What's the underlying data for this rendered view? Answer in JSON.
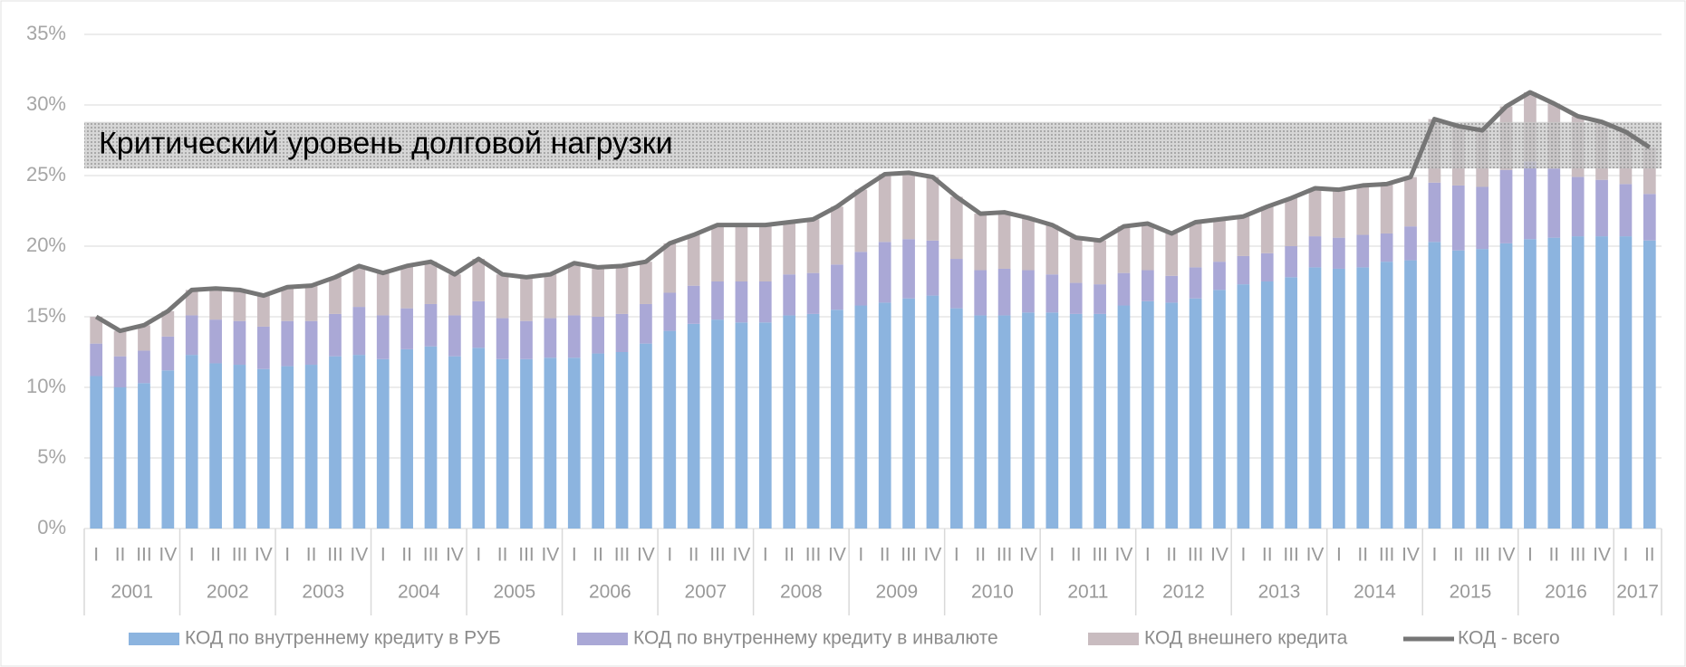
{
  "chart_data": {
    "type": "bar",
    "stacked": true,
    "categories": [
      "I",
      "II",
      "III",
      "IV",
      "I",
      "II",
      "III",
      "IV",
      "I",
      "II",
      "III",
      "IV",
      "I",
      "II",
      "III",
      "IV",
      "I",
      "II",
      "III",
      "IV",
      "I",
      "II",
      "III",
      "IV",
      "I",
      "II",
      "III",
      "IV",
      "I",
      "II",
      "III",
      "IV",
      "I",
      "II",
      "III",
      "IV",
      "I",
      "II",
      "III",
      "IV",
      "I",
      "II",
      "III",
      "IV",
      "I",
      "II",
      "III",
      "IV",
      "I",
      "II",
      "III",
      "IV",
      "I",
      "II",
      "III",
      "IV",
      "I",
      "II",
      "III",
      "IV",
      "I",
      "II",
      "III",
      "IV",
      "I",
      "II"
    ],
    "years": [
      "2001",
      null,
      null,
      null,
      "2002",
      null,
      null,
      null,
      "2003",
      null,
      null,
      null,
      "2004",
      null,
      null,
      null,
      "2005",
      null,
      null,
      null,
      "2006",
      null,
      null,
      null,
      "2007",
      null,
      null,
      null,
      "2008",
      null,
      null,
      null,
      "2009",
      null,
      null,
      null,
      "2010",
      null,
      null,
      null,
      "2011",
      null,
      null,
      null,
      "2012",
      null,
      null,
      null,
      "2013",
      null,
      null,
      null,
      "2014",
      null,
      null,
      null,
      "2015",
      null,
      null,
      null,
      "2016",
      null,
      null,
      null,
      "2017",
      null
    ],
    "series": [
      {
        "name": "КОД по внутреннему кредиту в РУБ",
        "color": "#8cb4df",
        "values": [
          10.8,
          10.0,
          10.3,
          11.2,
          12.3,
          11.7,
          11.6,
          11.3,
          11.5,
          11.6,
          12.2,
          12.3,
          12.0,
          12.7,
          12.9,
          12.2,
          12.8,
          12.0,
          12.0,
          12.1,
          12.1,
          12.4,
          12.5,
          13.1,
          14.0,
          14.5,
          14.8,
          14.6,
          14.6,
          15.1,
          15.2,
          15.5,
          15.8,
          16.0,
          16.3,
          16.5,
          15.6,
          15.1,
          15.1,
          15.3,
          15.3,
          15.2,
          15.2,
          15.8,
          16.1,
          16.0,
          16.3,
          16.9,
          17.3,
          17.5,
          17.8,
          18.5,
          18.4,
          18.5,
          18.9,
          19.0,
          20.3,
          19.7,
          19.8,
          20.2,
          20.5,
          20.6,
          20.7,
          20.7,
          20.7,
          20.4
        ]
      },
      {
        "name": "КОД по внутреннему кредиту в инвалюте",
        "color": "#aaa8d6",
        "values": [
          2.3,
          2.2,
          2.3,
          2.4,
          2.8,
          3.1,
          3.1,
          3.0,
          3.2,
          3.1,
          3.0,
          3.4,
          3.1,
          2.9,
          3.0,
          2.9,
          3.3,
          2.9,
          2.7,
          2.8,
          3.0,
          2.6,
          2.7,
          2.8,
          2.7,
          2.7,
          2.7,
          2.9,
          2.9,
          2.9,
          2.9,
          3.2,
          3.8,
          4.3,
          4.2,
          3.9,
          3.5,
          3.2,
          3.3,
          3.0,
          2.7,
          2.2,
          2.1,
          2.3,
          2.2,
          1.9,
          2.2,
          2.0,
          2.0,
          2.0,
          2.2,
          2.2,
          2.2,
          2.3,
          2.0,
          2.4,
          4.2,
          4.6,
          4.4,
          5.2,
          5.5,
          4.9,
          4.2,
          4.0,
          3.7,
          3.3
        ]
      },
      {
        "name": "КОД внешнего кредита",
        "color": "#c9bcc0",
        "values": [
          1.9,
          1.8,
          1.8,
          1.8,
          1.8,
          2.2,
          2.2,
          2.2,
          2.4,
          2.5,
          2.6,
          2.9,
          3.0,
          3.0,
          3.0,
          2.9,
          3.0,
          3.1,
          3.1,
          3.1,
          3.7,
          3.5,
          3.4,
          3.0,
          3.5,
          3.6,
          4.0,
          4.0,
          4.0,
          3.7,
          3.8,
          4.1,
          4.4,
          4.8,
          4.7,
          4.5,
          4.4,
          4.0,
          4.0,
          3.7,
          3.5,
          3.2,
          3.1,
          3.3,
          3.3,
          3.0,
          3.2,
          3.0,
          2.8,
          3.3,
          3.4,
          3.4,
          3.4,
          3.5,
          3.5,
          3.5,
          4.5,
          4.2,
          4.0,
          4.5,
          4.9,
          4.6,
          4.3,
          4.1,
          3.7,
          3.3
        ]
      },
      {
        "name": "КОД - всего",
        "color": "#767676",
        "type": "line",
        "values": [
          15.0,
          14.0,
          14.4,
          15.4,
          16.9,
          17.0,
          16.9,
          16.5,
          17.1,
          17.2,
          17.8,
          18.6,
          18.1,
          18.6,
          18.9,
          18.0,
          19.1,
          18.0,
          17.8,
          18.0,
          18.8,
          18.5,
          18.6,
          18.9,
          20.2,
          20.8,
          21.5,
          21.5,
          21.5,
          21.7,
          21.9,
          22.8,
          24.0,
          25.1,
          25.2,
          24.9,
          23.5,
          22.3,
          22.4,
          22.0,
          21.5,
          20.6,
          20.4,
          21.4,
          21.6,
          20.9,
          21.7,
          21.9,
          22.1,
          22.8,
          23.4,
          24.1,
          24.0,
          24.3,
          24.4,
          24.9,
          29.0,
          28.5,
          28.2,
          29.9,
          30.9,
          30.1,
          29.2,
          28.8,
          28.1,
          27.0
        ]
      }
    ],
    "critical_band": {
      "label": "Критический уровень долговой нагрузки",
      "range": [
        25.5,
        28.8
      ]
    },
    "ylim": [
      0,
      35
    ],
    "yticks": [
      {
        "value": 0,
        "label": "0%"
      },
      {
        "value": 5,
        "label": "5%"
      },
      {
        "value": 10,
        "label": "10%"
      },
      {
        "value": 15,
        "label": "15%"
      },
      {
        "value": 20,
        "label": "20%"
      },
      {
        "value": 25,
        "label": "25%"
      },
      {
        "value": 30,
        "label": "30%"
      },
      {
        "value": 35,
        "label": "35%"
      }
    ],
    "grid": true,
    "legend": "bottom"
  }
}
